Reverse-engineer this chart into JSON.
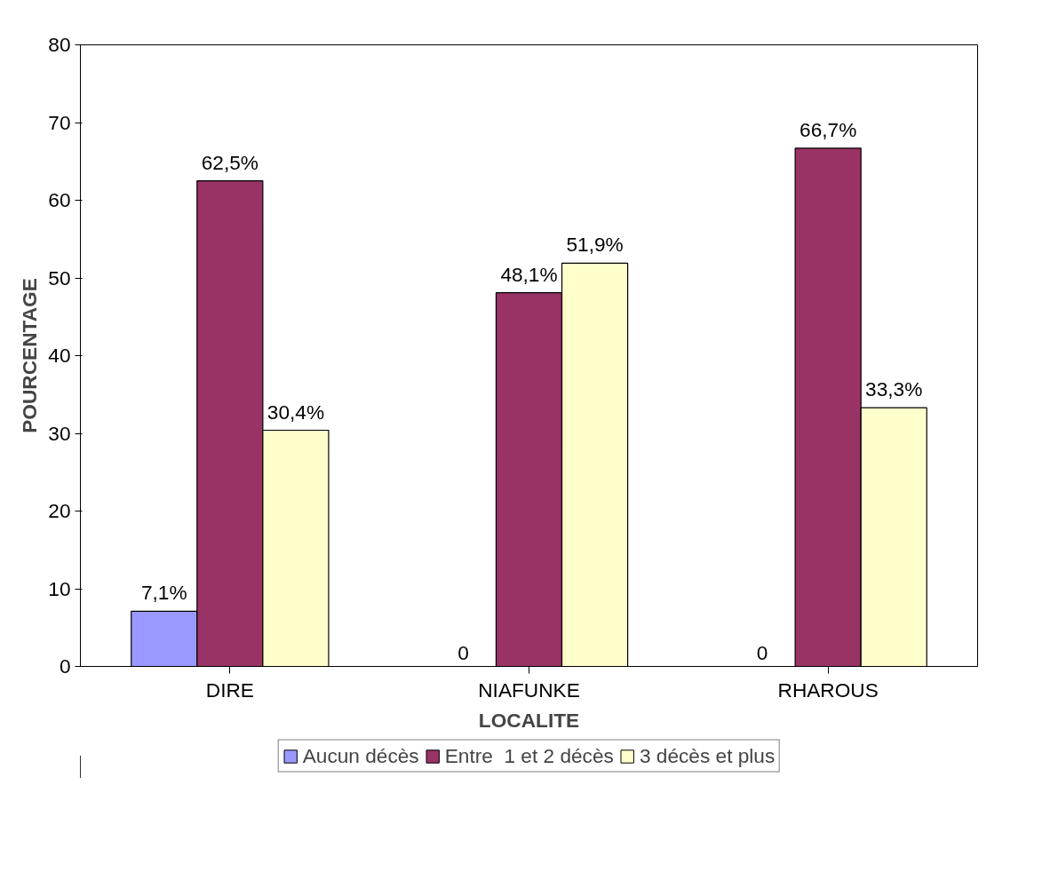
{
  "chart_data": {
    "type": "bar",
    "xlabel": "LOCALITE",
    "ylabel": "POURCENTAGE",
    "categories": [
      "DIRE",
      "NIAFUNKE",
      "RHAROUS"
    ],
    "series": [
      {
        "name": "Aucun décès",
        "color": "#9999ff",
        "values": [
          7.1,
          0,
          0
        ],
        "value_labels": [
          "7,1%",
          "0",
          "0"
        ]
      },
      {
        "name": "Entre  1 et 2 décès",
        "color": "#993366",
        "values": [
          62.5,
          48.1,
          66.7
        ],
        "value_labels": [
          "62,5%",
          "48,1%",
          "66,7%"
        ]
      },
      {
        "name": "3 décès et plus",
        "color": "#ffffcc",
        "values": [
          30.4,
          51.9,
          33.3
        ],
        "value_labels": [
          "30,4%",
          "51,9%",
          "33,3%"
        ]
      }
    ],
    "ylim": [
      0,
      80
    ],
    "yticks": [
      0,
      10,
      20,
      30,
      40,
      50,
      60,
      70,
      80
    ],
    "grid": false,
    "legend": "bottom"
  }
}
